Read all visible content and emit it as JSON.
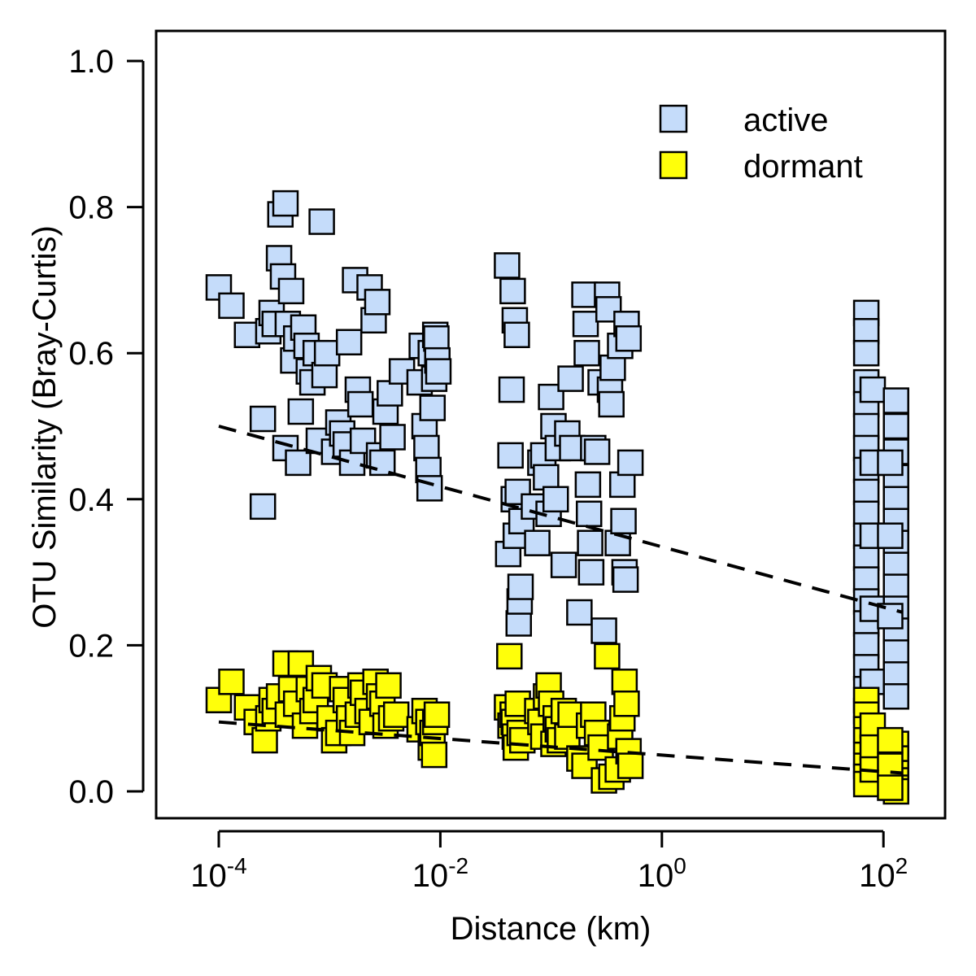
{
  "chart_data": {
    "type": "scatter",
    "xlabel": "Distance (km)",
    "ylabel": "OTU Similarity (Bray-Curtis)",
    "x_scale": "log10",
    "xlim": [
      3e-05,
      500
    ],
    "ylim": [
      -0.04,
      1.04
    ],
    "grid": false,
    "legend_position": "top-right",
    "x_ticks": [
      {
        "value": 0.0001,
        "base": "10",
        "exp": "-4"
      },
      {
        "value": 0.01,
        "base": "10",
        "exp": "-2"
      },
      {
        "value": 1,
        "base": "10",
        "exp": "0"
      },
      {
        "value": 100,
        "base": "10",
        "exp": "2"
      }
    ],
    "y_ticks": [
      {
        "value": 0.0,
        "label": "0.0"
      },
      {
        "value": 0.2,
        "label": "0.2"
      },
      {
        "value": 0.4,
        "label": "0.4"
      },
      {
        "value": 0.6,
        "label": "0.6"
      },
      {
        "value": 0.8,
        "label": "0.8"
      },
      {
        "value": 1.0,
        "label": "1.0"
      }
    ],
    "series": [
      {
        "name": "active",
        "color": "#c5dcfa",
        "marker": "square",
        "points": [
          [
            0.0001,
            0.69
          ],
          [
            0.00013,
            0.665
          ],
          [
            0.00018,
            0.625
          ],
          [
            0.00025,
            0.51
          ],
          [
            0.00025,
            0.39
          ],
          [
            0.00028,
            0.63
          ],
          [
            0.0003,
            0.655
          ],
          [
            0.00032,
            0.64
          ],
          [
            0.00035,
            0.73
          ],
          [
            0.00036,
            0.79
          ],
          [
            0.00038,
            0.705
          ],
          [
            0.0004,
            0.805
          ],
          [
            0.0004,
            0.47
          ],
          [
            0.00042,
            0.64
          ],
          [
            0.00045,
            0.685
          ],
          [
            0.00047,
            0.59
          ],
          [
            0.0005,
            0.62
          ],
          [
            0.00052,
            0.45
          ],
          [
            0.00055,
            0.52
          ],
          [
            0.00058,
            0.635
          ],
          [
            0.00062,
            0.61
          ],
          [
            0.00065,
            0.575
          ],
          [
            0.0007,
            0.56
          ],
          [
            0.00075,
            0.6
          ],
          [
            0.0008,
            0.48
          ],
          [
            0.00085,
            0.78
          ],
          [
            0.0009,
            0.57
          ],
          [
            0.00095,
            0.6
          ],
          [
            0.0011,
            0.465
          ],
          [
            0.0012,
            0.505
          ],
          [
            0.0013,
            0.49
          ],
          [
            0.0014,
            0.475
          ],
          [
            0.0015,
            0.615
          ],
          [
            0.0016,
            0.45
          ],
          [
            0.0017,
            0.7
          ],
          [
            0.0018,
            0.55
          ],
          [
            0.0019,
            0.53
          ],
          [
            0.002,
            0.48
          ],
          [
            0.0023,
            0.69
          ],
          [
            0.0025,
            0.645
          ],
          [
            0.0027,
            0.67
          ],
          [
            0.0028,
            0.46
          ],
          [
            0.003,
            0.45
          ],
          [
            0.0032,
            0.52
          ],
          [
            0.0035,
            0.545
          ],
          [
            0.0037,
            0.485
          ],
          [
            0.0045,
            0.575
          ],
          [
            0.0065,
            0.56
          ],
          [
            0.0068,
            0.61
          ],
          [
            0.0072,
            0.5
          ],
          [
            0.0075,
            0.47
          ],
          [
            0.0078,
            0.44
          ],
          [
            0.008,
            0.415
          ],
          [
            0.0082,
            0.6
          ],
          [
            0.0085,
            0.525
          ],
          [
            0.0088,
            0.565
          ],
          [
            0.009,
            0.625
          ],
          [
            0.0092,
            0.62
          ],
          [
            0.0094,
            0.59
          ],
          [
            0.0096,
            0.575
          ],
          [
            0.04,
            0.72
          ],
          [
            0.041,
            0.325
          ],
          [
            0.043,
            0.46
          ],
          [
            0.044,
            0.55
          ],
          [
            0.045,
            0.685
          ],
          [
            0.046,
            0.4
          ],
          [
            0.047,
            0.645
          ],
          [
            0.048,
            0.35
          ],
          [
            0.049,
            0.625
          ],
          [
            0.05,
            0.41
          ],
          [
            0.051,
            0.23
          ],
          [
            0.052,
            0.26
          ],
          [
            0.053,
            0.28
          ],
          [
            0.054,
            0.37
          ],
          [
            0.07,
            0.39
          ],
          [
            0.075,
            0.34
          ],
          [
            0.08,
            0.45
          ],
          [
            0.085,
            0.46
          ],
          [
            0.09,
            0.43
          ],
          [
            0.095,
            0.38
          ],
          [
            0.1,
            0.54
          ],
          [
            0.105,
            0.5
          ],
          [
            0.11,
            0.4
          ],
          [
            0.115,
            0.47
          ],
          [
            0.13,
            0.31
          ],
          [
            0.14,
            0.49
          ],
          [
            0.15,
            0.565
          ],
          [
            0.155,
            0.47
          ],
          [
            0.18,
            0.245
          ],
          [
            0.2,
            0.68
          ],
          [
            0.205,
            0.64
          ],
          [
            0.21,
            0.6
          ],
          [
            0.215,
            0.42
          ],
          [
            0.22,
            0.38
          ],
          [
            0.225,
            0.34
          ],
          [
            0.23,
            0.3
          ],
          [
            0.24,
            0.47
          ],
          [
            0.26,
            0.465
          ],
          [
            0.28,
            0.56
          ],
          [
            0.3,
            0.22
          ],
          [
            0.32,
            0.68
          ],
          [
            0.33,
            0.66
          ],
          [
            0.34,
            0.55
          ],
          [
            0.35,
            0.53
          ],
          [
            0.36,
            0.58
          ],
          [
            0.4,
            0.34
          ],
          [
            0.42,
            0.61
          ],
          [
            0.44,
            0.42
          ],
          [
            0.45,
            0.37
          ],
          [
            0.46,
            0.3
          ],
          [
            0.47,
            0.29
          ],
          [
            0.48,
            0.64
          ],
          [
            0.5,
            0.62
          ],
          [
            0.52,
            0.45
          ],
          [
            70,
            0.655
          ],
          [
            70,
            0.63
          ],
          [
            70,
            0.6
          ],
          [
            70,
            0.56
          ],
          [
            70,
            0.53
          ],
          [
            70,
            0.5
          ],
          [
            70,
            0.47
          ],
          [
            70,
            0.44
          ],
          [
            70,
            0.41
          ],
          [
            70,
            0.38
          ],
          [
            70,
            0.35
          ],
          [
            70,
            0.32
          ],
          [
            70,
            0.29
          ],
          [
            70,
            0.26
          ],
          [
            70,
            0.23
          ],
          [
            70,
            0.2
          ],
          [
            70,
            0.17
          ],
          [
            70,
            0.14
          ],
          [
            70,
            0.11
          ],
          [
            80,
            0.55
          ],
          [
            80,
            0.45
          ],
          [
            80,
            0.35
          ],
          [
            80,
            0.25
          ],
          [
            80,
            0.15
          ],
          [
            130,
            0.535
          ],
          [
            130,
            0.5
          ],
          [
            130,
            0.465
          ],
          [
            130,
            0.43
          ],
          [
            130,
            0.4
          ],
          [
            130,
            0.37
          ],
          [
            130,
            0.34
          ],
          [
            130,
            0.31
          ],
          [
            130,
            0.28
          ],
          [
            130,
            0.25
          ],
          [
            130,
            0.22
          ],
          [
            130,
            0.19
          ],
          [
            130,
            0.16
          ],
          [
            130,
            0.13
          ],
          [
            115,
            0.45
          ],
          [
            115,
            0.35
          ],
          [
            115,
            0.24
          ]
        ]
      },
      {
        "name": "dormant",
        "color": "#ffff0a",
        "marker": "square",
        "points": [
          [
            0.0001,
            0.125
          ],
          [
            0.00013,
            0.15
          ],
          [
            0.00018,
            0.115
          ],
          [
            0.00022,
            0.095
          ],
          [
            0.00026,
            0.07
          ],
          [
            0.00028,
            0.1
          ],
          [
            0.0003,
            0.125
          ],
          [
            0.00032,
            0.11
          ],
          [
            0.00035,
            0.13
          ],
          [
            0.0004,
            0.175
          ],
          [
            0.00042,
            0.105
          ],
          [
            0.00045,
            0.14
          ],
          [
            0.0005,
            0.12
          ],
          [
            0.00055,
            0.175
          ],
          [
            0.0006,
            0.09
          ],
          [
            0.00065,
            0.14
          ],
          [
            0.0007,
            0.11
          ],
          [
            0.00075,
            0.125
          ],
          [
            0.0008,
            0.155
          ],
          [
            0.0009,
            0.145
          ],
          [
            0.001,
            0.1
          ],
          [
            0.0011,
            0.07
          ],
          [
            0.0012,
            0.08
          ],
          [
            0.0013,
            0.14
          ],
          [
            0.0014,
            0.125
          ],
          [
            0.0015,
            0.1
          ],
          [
            0.0016,
            0.08
          ],
          [
            0.0018,
            0.105
          ],
          [
            0.0019,
            0.145
          ],
          [
            0.002,
            0.135
          ],
          [
            0.0022,
            0.11
          ],
          [
            0.0024,
            0.095
          ],
          [
            0.0026,
            0.15
          ],
          [
            0.0028,
            0.13
          ],
          [
            0.003,
            0.12
          ],
          [
            0.0032,
            0.09
          ],
          [
            0.0034,
            0.145
          ],
          [
            0.0036,
            0.1
          ],
          [
            0.004,
            0.105
          ],
          [
            0.0065,
            0.085
          ],
          [
            0.0072,
            0.11
          ],
          [
            0.0078,
            0.095
          ],
          [
            0.0082,
            0.06
          ],
          [
            0.0085,
            0.08
          ],
          [
            0.0088,
            0.05
          ],
          [
            0.009,
            0.095
          ],
          [
            0.0093,
            0.105
          ],
          [
            0.04,
            0.115
          ],
          [
            0.042,
            0.185
          ],
          [
            0.043,
            0.09
          ],
          [
            0.045,
            0.105
          ],
          [
            0.046,
            0.095
          ],
          [
            0.047,
            0.075
          ],
          [
            0.048,
            0.06
          ],
          [
            0.05,
            0.12
          ],
          [
            0.052,
            0.08
          ],
          [
            0.055,
            0.07
          ],
          [
            0.075,
            0.11
          ],
          [
            0.08,
            0.095
          ],
          [
            0.085,
            0.075
          ],
          [
            0.09,
            0.13
          ],
          [
            0.095,
            0.145
          ],
          [
            0.1,
            0.12
          ],
          [
            0.105,
            0.065
          ],
          [
            0.11,
            0.1
          ],
          [
            0.115,
            0.085
          ],
          [
            0.12,
            0.07
          ],
          [
            0.13,
            0.11
          ],
          [
            0.14,
            0.075
          ],
          [
            0.15,
            0.105
          ],
          [
            0.18,
            0.045
          ],
          [
            0.2,
            0.035
          ],
          [
            0.22,
            0.09
          ],
          [
            0.24,
            0.105
          ],
          [
            0.26,
            0.08
          ],
          [
            0.28,
            0.06
          ],
          [
            0.3,
            0.015
          ],
          [
            0.32,
            0.185
          ],
          [
            0.35,
            0.02
          ],
          [
            0.4,
            0.03
          ],
          [
            0.42,
            0.075
          ],
          [
            0.44,
            0.1
          ],
          [
            0.46,
            0.15
          ],
          [
            0.48,
            0.12
          ],
          [
            0.5,
            0.055
          ],
          [
            0.52,
            0.035
          ],
          [
            70,
            0.125
          ],
          [
            70,
            0.105
          ],
          [
            70,
            0.085
          ],
          [
            70,
            0.07
          ],
          [
            70,
            0.05
          ],
          [
            70,
            0.035
          ],
          [
            70,
            0.02
          ],
          [
            70,
            0.01
          ],
          [
            80,
            0.09
          ],
          [
            80,
            0.06
          ],
          [
            80,
            0.03
          ],
          [
            130,
            0.065
          ],
          [
            130,
            0.045
          ],
          [
            130,
            0.025
          ],
          [
            130,
            0.015
          ],
          [
            130,
            0.005
          ],
          [
            130,
            0.0
          ],
          [
            115,
            0.07
          ],
          [
            115,
            0.035
          ],
          [
            115,
            0.005
          ]
        ]
      }
    ],
    "fit_lines": [
      {
        "series": "active",
        "style": "dashed",
        "x": [
          0.0001,
          150
        ],
        "y": [
          0.5,
          0.245
        ]
      },
      {
        "series": "dormant",
        "style": "dashed",
        "x": [
          0.0001,
          150
        ],
        "y": [
          0.095,
          0.025
        ]
      }
    ]
  }
}
